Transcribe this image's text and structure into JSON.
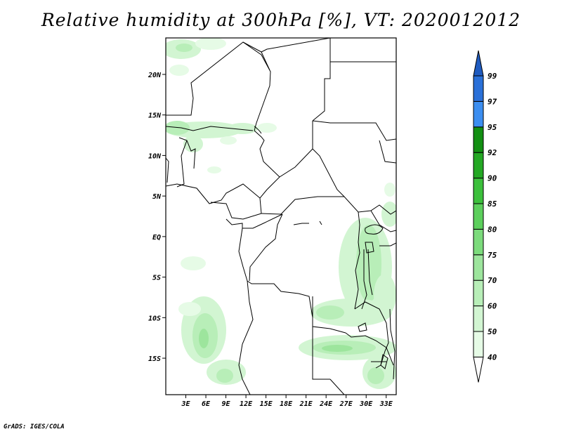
{
  "title": "Relative humidity at 300hPa [%], VT: 2020012012",
  "credit": "GrADS: IGES/COLA",
  "map": {
    "lat_ticks": [
      "20N",
      "15N",
      "10N",
      "5N",
      "EQ",
      "5S",
      "10S",
      "15S"
    ],
    "lon_ticks": [
      "3E",
      "6E",
      "9E",
      "12E",
      "15E",
      "18E",
      "21E",
      "24E",
      "27E",
      "30E",
      "33E"
    ],
    "lat_range": [
      -19.5,
      24.5
    ],
    "lon_range": [
      0,
      34.5
    ]
  },
  "colorbar": {
    "labels": [
      "40",
      "50",
      "60",
      "70",
      "75",
      "80",
      "85",
      "90",
      "92",
      "95",
      "97",
      "99"
    ],
    "colors": [
      "#ffffff",
      "#e6fbe6",
      "#d2f5d2",
      "#b8eeb8",
      "#9de59d",
      "#7cdb7c",
      "#5ccf5c",
      "#3cc03c",
      "#24a824",
      "#128f12",
      "#3c8ef0",
      "#2a70d8",
      "#1f5bc0"
    ]
  }
}
